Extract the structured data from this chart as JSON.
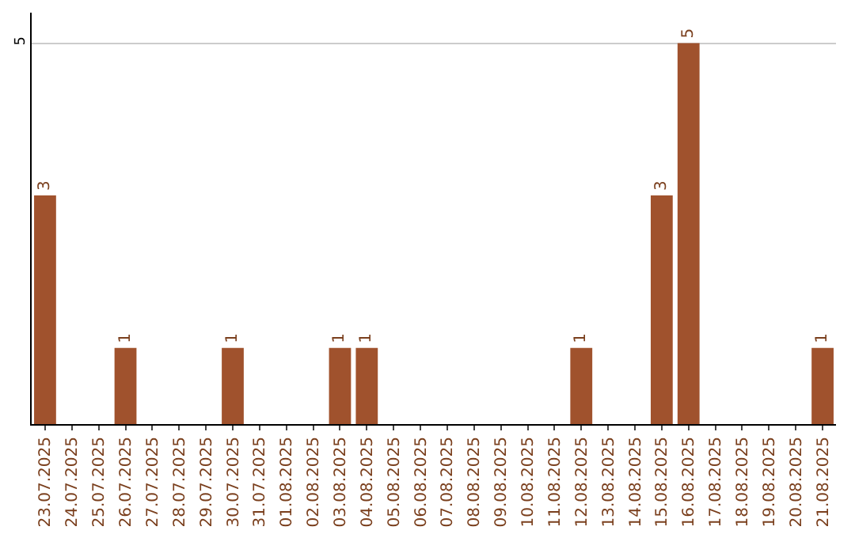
{
  "chart_data": {
    "type": "bar",
    "categories": [
      "23.07.2025",
      "24.07.2025",
      "25.07.2025",
      "26.07.2025",
      "27.07.2025",
      "28.07.2025",
      "29.07.2025",
      "30.07.2025",
      "31.07.2025",
      "01.08.2025",
      "02.08.2025",
      "03.08.2025",
      "04.08.2025",
      "05.08.2025",
      "06.08.2025",
      "07.08.2025",
      "08.08.2025",
      "09.08.2025",
      "10.08.2025",
      "11.08.2025",
      "12.08.2025",
      "13.08.2025",
      "14.08.2025",
      "15.08.2025",
      "16.08.2025",
      "17.08.2025",
      "18.08.2025",
      "19.08.2025",
      "20.08.2025",
      "21.08.2025"
    ],
    "values": [
      3,
      0,
      0,
      1,
      0,
      0,
      0,
      1,
      0,
      0,
      0,
      1,
      1,
      0,
      0,
      0,
      0,
      0,
      0,
      0,
      1,
      0,
      0,
      3,
      5,
      0,
      0,
      0,
      0,
      1
    ],
    "value_labels": [
      "3",
      null,
      null,
      "1",
      null,
      null,
      null,
      "1",
      null,
      null,
      null,
      "1",
      "1",
      null,
      null,
      null,
      null,
      null,
      null,
      null,
      "1",
      null,
      null,
      "3",
      "5",
      null,
      null,
      null,
      null,
      "1"
    ],
    "color": "#a0522d",
    "ylim": [
      0,
      5.4
    ],
    "yticks": [
      {
        "value": 0,
        "label": null
      },
      5
    ],
    "grid": "y"
  }
}
